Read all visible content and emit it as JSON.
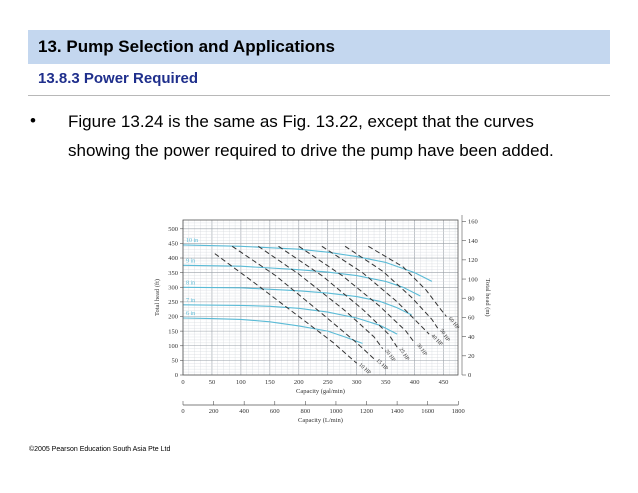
{
  "slide": {
    "title": "13. Pump Selection and Applications",
    "section": "13.8.3 Power Required",
    "bullet_mark": "•",
    "bullet_text": "Figure 13.24 is the same as Fig. 13.22, except that the curves showing the power required to drive the pump have been added.",
    "footer": "©2005 Pearson Education South Asia Pte Ltd",
    "header_color": "#c4d7ef",
    "section_color": "#1f2f8c"
  },
  "chart_data": {
    "type": "line",
    "x_label": "Capacity (gal/min)",
    "x_ticks": [
      0,
      50,
      100,
      150,
      200,
      250,
      300,
      350,
      400,
      450
    ],
    "x_range": [
      0,
      475
    ],
    "x2_label": "Capacity (L/min)",
    "x2_ticks": [
      0,
      200,
      400,
      600,
      800,
      1000,
      1200,
      1400,
      1600,
      1800
    ],
    "y_left_label": "Total head (ft)",
    "y_left_ticks": [
      0,
      50,
      100,
      150,
      200,
      250,
      300,
      350,
      400,
      450,
      500
    ],
    "y_left_range": [
      0,
      530
    ],
    "y_right_label": "Total head (m)",
    "y_right_ticks": [
      0,
      20,
      40,
      60,
      80,
      100,
      120,
      140,
      160
    ],
    "impeller_color": "#5bbbd6",
    "impeller_curves": [
      {
        "name": "10 in",
        "x": [
          0,
          100,
          200,
          250,
          300,
          350,
          400,
          430
        ],
        "y": [
          445,
          440,
          430,
          420,
          405,
          385,
          350,
          320
        ]
      },
      {
        "name": "9 in",
        "x": [
          0,
          100,
          200,
          250,
          300,
          350,
          380,
          410
        ],
        "y": [
          375,
          372,
          360,
          352,
          340,
          320,
          300,
          270
        ]
      },
      {
        "name": "8 in",
        "x": [
          0,
          100,
          200,
          250,
          300,
          340,
          370,
          395
        ],
        "y": [
          300,
          298,
          288,
          280,
          268,
          252,
          230,
          205
        ]
      },
      {
        "name": "7 in",
        "x": [
          0,
          100,
          150,
          200,
          250,
          300,
          340,
          370
        ],
        "y": [
          240,
          238,
          235,
          228,
          215,
          195,
          170,
          140
        ]
      },
      {
        "name": "6 in",
        "x": [
          0,
          50,
          100,
          150,
          200,
          250,
          280,
          310
        ],
        "y": [
          195,
          193,
          190,
          182,
          168,
          150,
          130,
          108
        ]
      }
    ],
    "power_curves": [
      {
        "name": "10 HP",
        "x": [
          55,
          120,
          200,
          260,
          300
        ],
        "y": [
          415,
          320,
          200,
          110,
          40
        ]
      },
      {
        "name": "15 HP",
        "x": [
          85,
          160,
          240,
          300,
          330
        ],
        "y": [
          440,
          340,
          210,
          110,
          55
        ]
      },
      {
        "name": "20 HP",
        "x": [
          130,
          200,
          280,
          330,
          345
        ],
        "y": [
          440,
          345,
          220,
          130,
          90
        ]
      },
      {
        "name": "25 HP",
        "x": [
          165,
          240,
          310,
          355,
          370
        ],
        "y": [
          440,
          340,
          225,
          140,
          95
        ]
      },
      {
        "name": "30 HP",
        "x": [
          200,
          275,
          340,
          385,
          400
        ],
        "y": [
          440,
          340,
          235,
          150,
          110
        ]
      },
      {
        "name": "40 HP",
        "x": [
          240,
          310,
          370,
          410,
          425
        ],
        "y": [
          440,
          350,
          250,
          170,
          140
        ]
      },
      {
        "name": "50 HP",
        "x": [
          280,
          345,
          395,
          430,
          440
        ],
        "y": [
          440,
          355,
          265,
          190,
          160
        ]
      },
      {
        "name": "60 HP",
        "x": [
          320,
          380,
          420,
          445,
          455
        ],
        "y": [
          440,
          370,
          290,
          225,
          200
        ]
      }
    ],
    "grid": true
  }
}
